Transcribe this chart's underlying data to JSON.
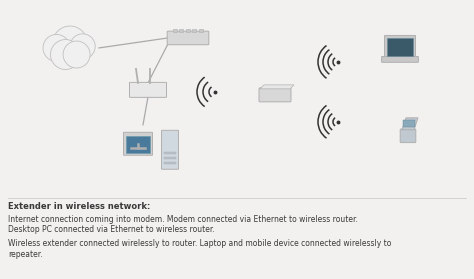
{
  "fig_bg": "#f2f1ef",
  "diagram_bg": "#ffffff",
  "text_color": "#3a3a3a",
  "line_color": "#aaaaaa",
  "cloud_color": "#f0f0f0",
  "cloud_edge": "#c0c0c0",
  "device_color": "#e0e0e0",
  "device_edge": "#b0b0b0",
  "switch_color": "#d8d8d8",
  "router_color": "#e8e8e8",
  "screen_color": "#4a7a9b",
  "wifi_color": "#333333",
  "title_text": "Extender in wireless network:",
  "line1": "Internet connection coming into modem. Modem connected via Ethernet to wireless router.",
  "line2": "Desktop PC connected via Ethernet to wireless router.",
  "line3": "Wireless extender connected wirelessly to router. Laptop and mobile device connected wirelessly to",
  "line4": "repeater.",
  "fig_w": 4.74,
  "fig_h": 2.79,
  "dpi": 100
}
